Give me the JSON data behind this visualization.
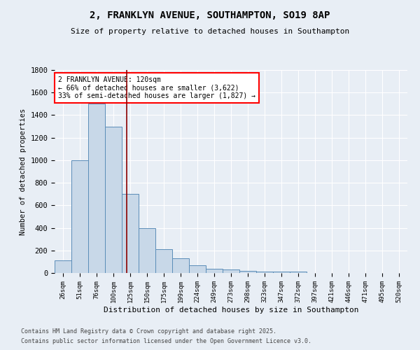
{
  "title1": "2, FRANKLYN AVENUE, SOUTHAMPTON, SO19 8AP",
  "title2": "Size of property relative to detached houses in Southampton",
  "xlabel": "Distribution of detached houses by size in Southampton",
  "ylabel": "Number of detached properties",
  "categories": [
    "26sqm",
    "51sqm",
    "76sqm",
    "100sqm",
    "125sqm",
    "150sqm",
    "175sqm",
    "199sqm",
    "224sqm",
    "249sqm",
    "273sqm",
    "298sqm",
    "323sqm",
    "347sqm",
    "372sqm",
    "397sqm",
    "421sqm",
    "446sqm",
    "471sqm",
    "495sqm",
    "520sqm"
  ],
  "values": [
    110,
    1000,
    1500,
    1300,
    700,
    400,
    210,
    130,
    70,
    40,
    30,
    20,
    10,
    15,
    10,
    0,
    0,
    0,
    0,
    0,
    0
  ],
  "bar_color": "#c8d8e8",
  "bar_edge_color": "#5b8db8",
  "annotation_line1": "2 FRANKLYN AVENUE: 120sqm",
  "annotation_line2": "← 66% of detached houses are smaller (3,622)",
  "annotation_line3": "33% of semi-detached houses are larger (1,827) →",
  "ylim": [
    0,
    1800
  ],
  "yticks": [
    0,
    200,
    400,
    600,
    800,
    1000,
    1200,
    1400,
    1600,
    1800
  ],
  "background_color": "#e8eef5",
  "grid_color": "#ffffff",
  "footer1": "Contains HM Land Registry data © Crown copyright and database right 2025.",
  "footer2": "Contains public sector information licensed under the Open Government Licence v3.0."
}
